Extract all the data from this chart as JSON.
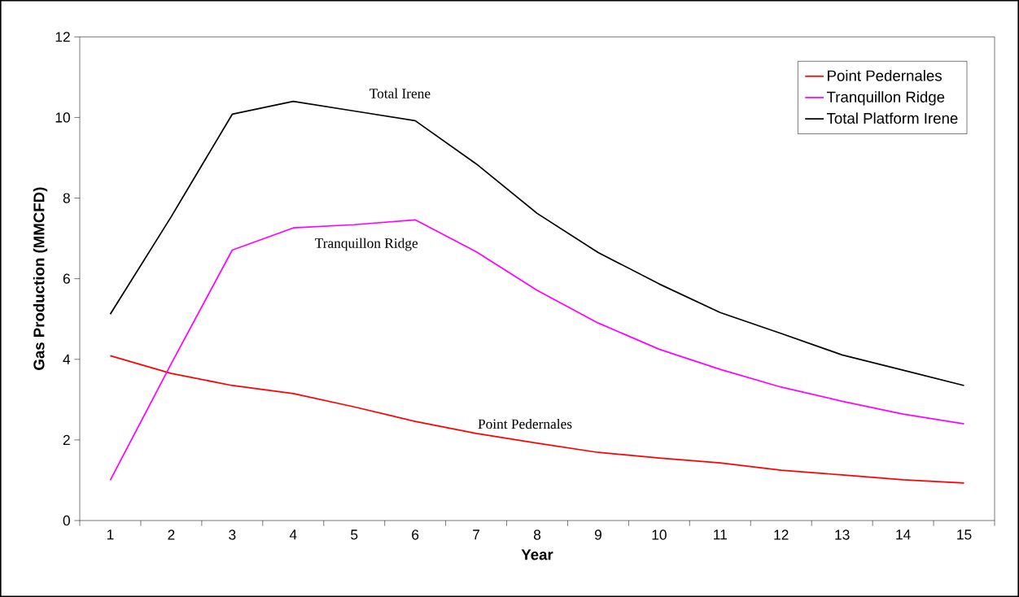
{
  "chart_data": {
    "type": "line",
    "xlabel": "Year",
    "ylabel": "Gas Production (MMCFD)",
    "categories": [
      "1",
      "2",
      "3",
      "4",
      "5",
      "6",
      "7",
      "8",
      "9",
      "10",
      "11",
      "12",
      "13",
      "14",
      "15"
    ],
    "series": [
      {
        "name": "Point Pedernales",
        "color": "#ff0000",
        "values": [
          4.09,
          3.65,
          3.35,
          3.15,
          2.82,
          2.46,
          2.16,
          1.92,
          1.69,
          1.55,
          1.43,
          1.25,
          1.13,
          1.01,
          0.93
        ]
      },
      {
        "name": "Tranquillon Ridge",
        "color": "#ff00ff",
        "values": [
          1.0,
          3.89,
          6.71,
          7.26,
          7.34,
          7.46,
          6.67,
          5.71,
          4.9,
          4.25,
          3.75,
          3.31,
          2.96,
          2.64,
          2.4
        ]
      },
      {
        "name": "Total Platform Irene",
        "color": "#000000",
        "values": [
          5.12,
          7.54,
          10.08,
          10.4,
          10.16,
          9.92,
          8.85,
          7.62,
          6.65,
          5.87,
          5.16,
          4.64,
          4.11,
          3.73,
          3.35
        ]
      }
    ],
    "ylim": [
      0,
      12
    ],
    "yticks": [
      0,
      2,
      4,
      6,
      8,
      10,
      12
    ],
    "grid": false,
    "legend": "top right",
    "marker": "none",
    "line_style": "solid",
    "annotations": [
      "Total Irene",
      "Tranquillon Ridge",
      "Point Pedernales"
    ]
  }
}
